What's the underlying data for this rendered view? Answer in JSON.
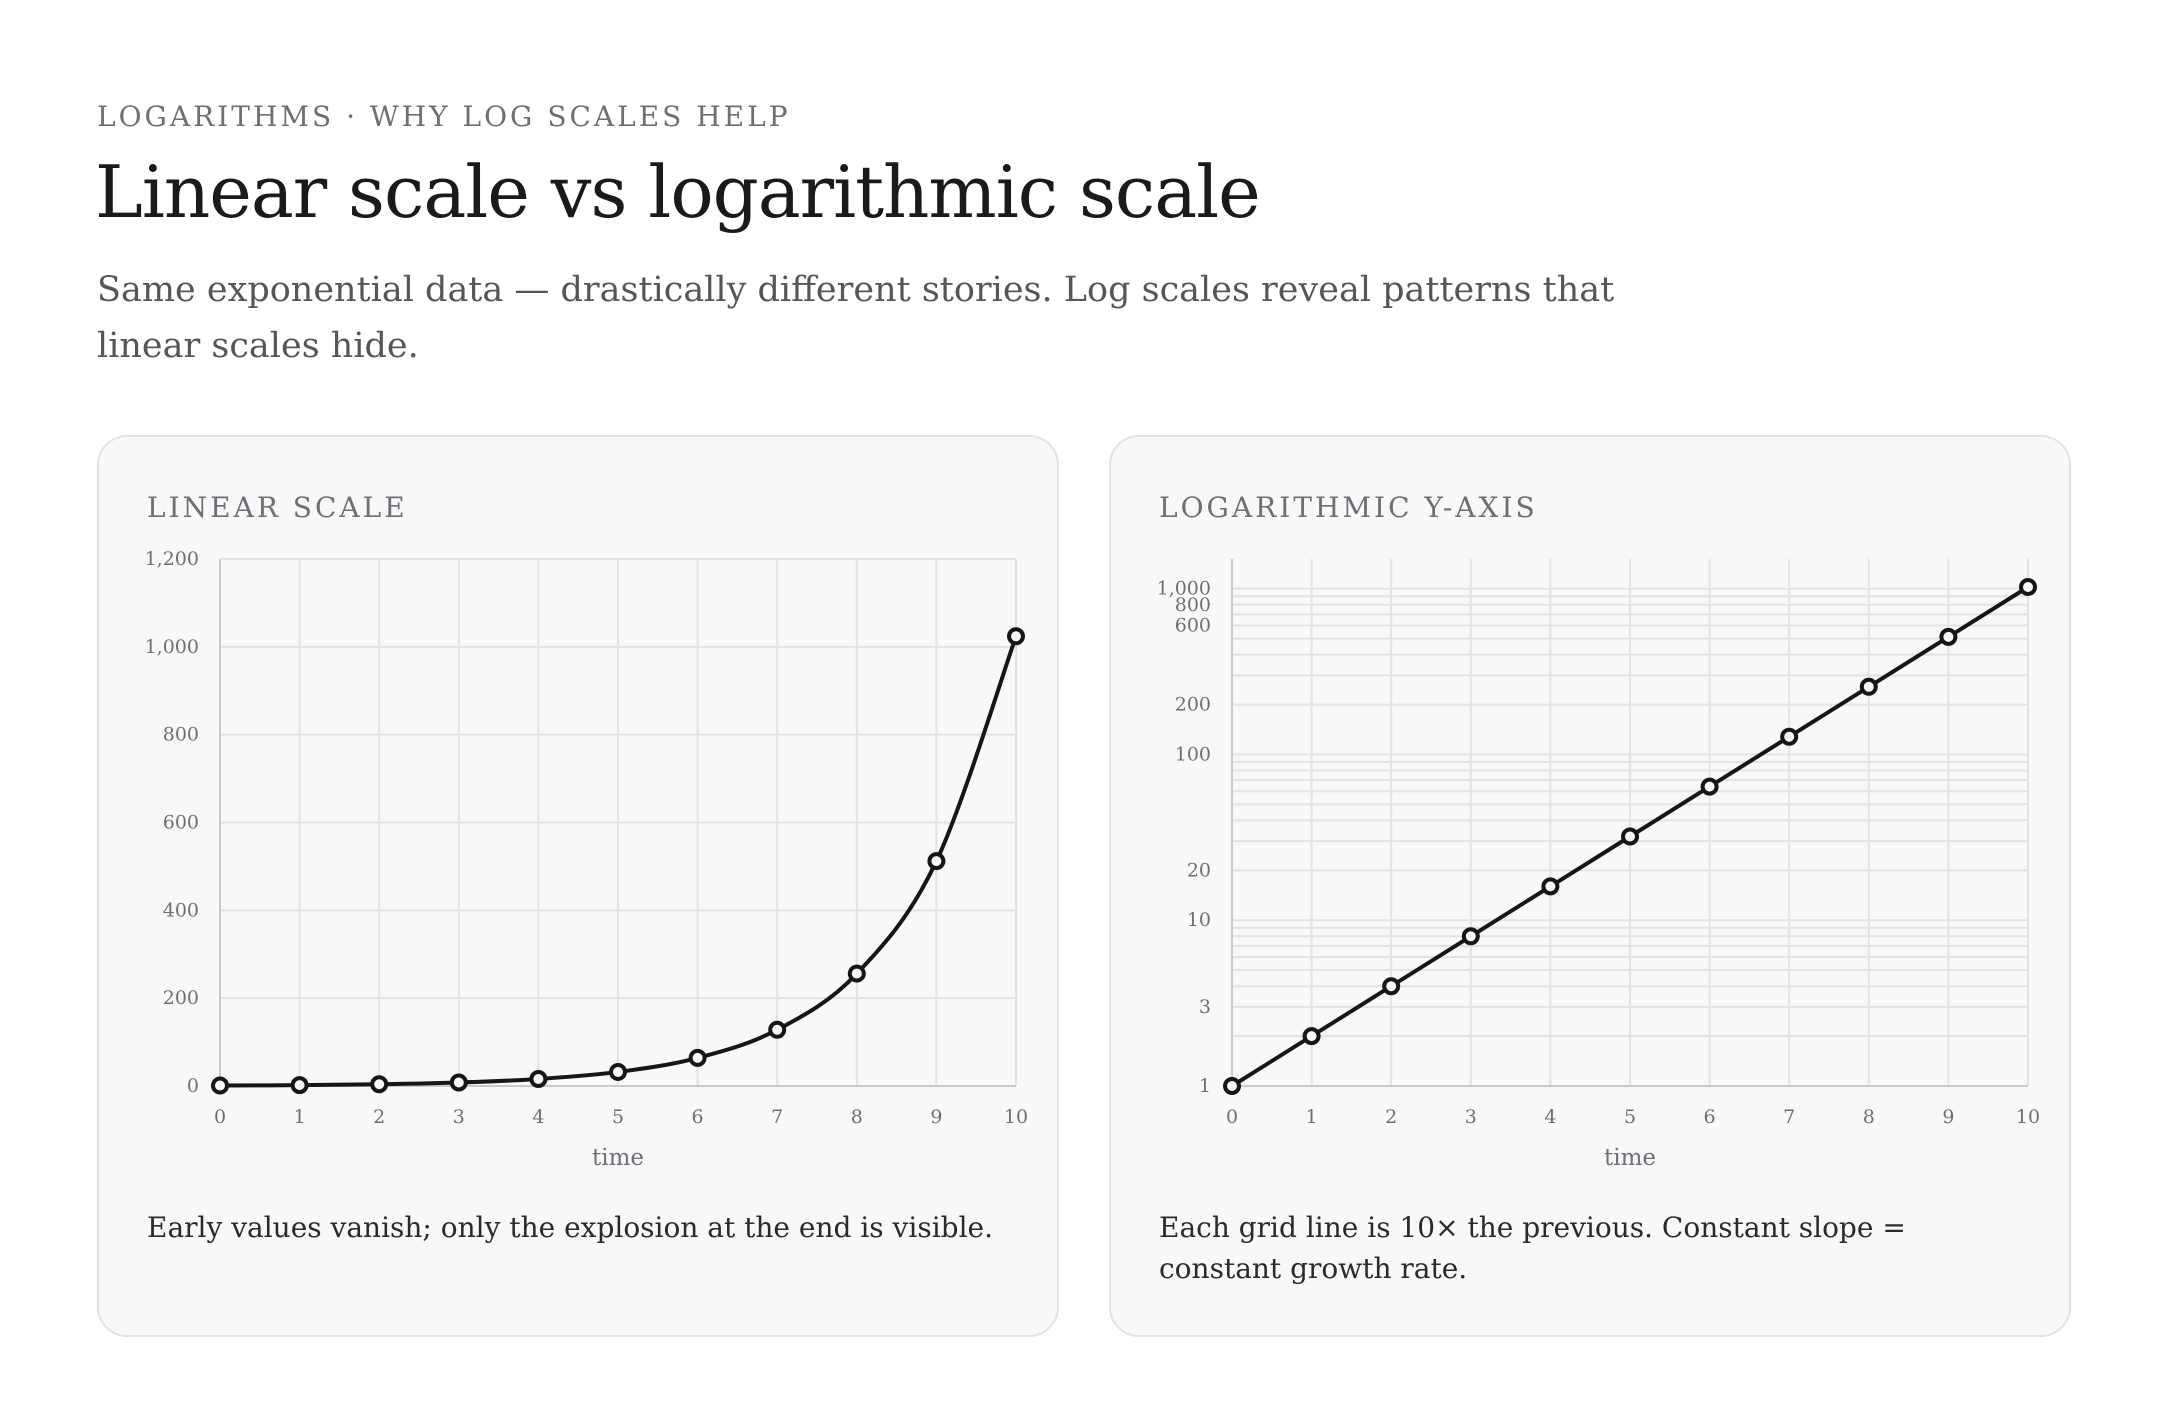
{
  "header": {
    "eyebrow": "LOGARITHMS · WHY LOG SCALES HELP",
    "title": "Linear scale vs logarithmic scale",
    "subtitle": "Same exponential data — drastically different stories. Log scales reveal patterns that linear scales hide."
  },
  "panels": [
    {
      "label": "LINEAR SCALE",
      "caption": "Early values vanish; only the explosion at the end is visible."
    },
    {
      "label": "LOGARITHMIC Y-AXIS",
      "caption": "Each grid line is 10× the previous. Constant slope = constant growth rate."
    }
  ],
  "colors": {
    "line": "#161616",
    "grid": "#e2e2e4",
    "axis": "#c9c9cc",
    "tick_text": "#6e6e76",
    "card_bg": "#f8f8f8"
  },
  "chart_data": [
    {
      "type": "line",
      "title": "",
      "xlabel": "time",
      "ylabel": "",
      "x": [
        0,
        1,
        2,
        3,
        4,
        5,
        6,
        7,
        8,
        9,
        10
      ],
      "series": [
        {
          "values": [
            1,
            2,
            4,
            8,
            16,
            32,
            64,
            128,
            256,
            512,
            1024
          ]
        }
      ],
      "xlim": [
        0,
        10
      ],
      "ylim": [
        0,
        1200
      ],
      "xticks": [
        0,
        1,
        2,
        3,
        4,
        5,
        6,
        7,
        8,
        9,
        10
      ],
      "yticks": [
        0,
        200,
        400,
        600,
        800,
        1000,
        1200
      ],
      "ytick_labels": [
        "0",
        "200",
        "400",
        "600",
        "800",
        "1,000",
        "1,200"
      ],
      "yscale": "linear",
      "grid": true,
      "markers": "open-circle"
    },
    {
      "type": "line",
      "title": "",
      "xlabel": "time",
      "ylabel": "",
      "x": [
        0,
        1,
        2,
        3,
        4,
        5,
        6,
        7,
        8,
        9,
        10
      ],
      "series": [
        {
          "values": [
            1,
            2,
            4,
            8,
            16,
            32,
            64,
            128,
            256,
            512,
            1024
          ]
        }
      ],
      "xlim": [
        0,
        10
      ],
      "ylim": [
        1,
        1024
      ],
      "xticks": [
        0,
        1,
        2,
        3,
        4,
        5,
        6,
        7,
        8,
        9,
        10
      ],
      "yticks": [
        1,
        3,
        10,
        20,
        100,
        200,
        600,
        800,
        1000
      ],
      "ytick_labels": [
        "1",
        "3",
        "10",
        "20",
        "100",
        "200",
        "600",
        "800",
        "1,000"
      ],
      "minor_grid_values": [
        2,
        3,
        4,
        5,
        6,
        7,
        8,
        9,
        10,
        20,
        30,
        40,
        50,
        60,
        70,
        80,
        90,
        100,
        200,
        300,
        400,
        500,
        600,
        700,
        800,
        900,
        1000
      ],
      "yscale": "log",
      "grid": true,
      "markers": "open-circle"
    }
  ]
}
